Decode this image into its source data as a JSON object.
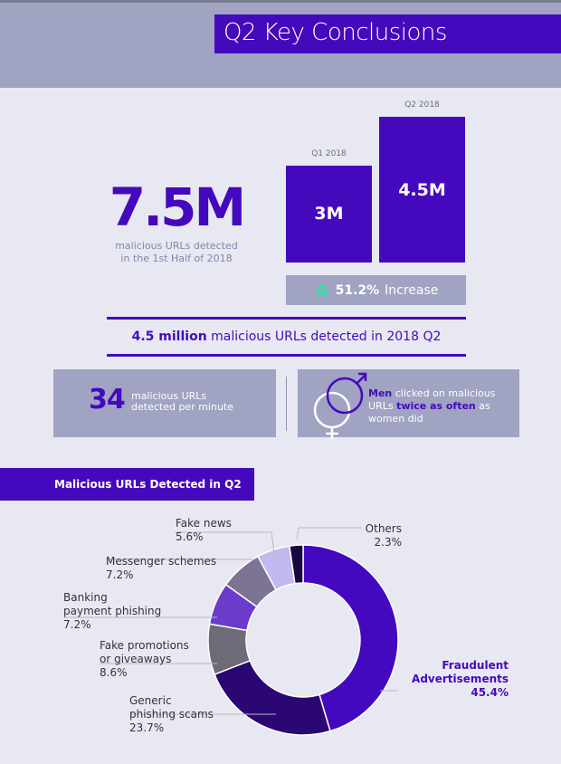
{
  "header": {
    "title": "Q2 Key Conclusions"
  },
  "summary": {
    "total": "7.5M",
    "total_caption_1": "malicious URLs detected",
    "total_caption_2": "in the 1st Half of 2018"
  },
  "chart_data": [
    {
      "type": "bar",
      "categories": [
        "Q1 2018",
        "Q2 2018"
      ],
      "values": [
        3,
        4.5
      ],
      "value_labels": [
        "3M",
        "4.5M"
      ],
      "unit": "M",
      "color": "#4509bd"
    },
    {
      "type": "pie",
      "title": "Malicious URLs Detected in Q2",
      "donut": true,
      "slices": [
        {
          "label": "Fraudulent Advertisements",
          "value": 45.4,
          "pct": "45.4%",
          "color": "#4209bf"
        },
        {
          "label": "Generic phishing scams",
          "value": 23.7,
          "pct": "23.7%",
          "color": "#2a0773"
        },
        {
          "label": "Fake promotions or giveaways",
          "value": 8.6,
          "pct": "8.6%",
          "color": "#6e6b79"
        },
        {
          "label": "Banking payment phishing",
          "value": 7.2,
          "pct": "7.2%",
          "color": "#6b3bcc"
        },
        {
          "label": "Messenger schemes",
          "value": 7.2,
          "pct": "7.2%",
          "color": "#7d7394"
        },
        {
          "label": "Fake news",
          "value": 5.6,
          "pct": "5.6%",
          "color": "#c2b9f0"
        },
        {
          "label": "Others",
          "value": 2.3,
          "pct": "2.3%",
          "color": "#1a0640"
        }
      ]
    }
  ],
  "increase": {
    "value": "51.2%",
    "label": "Increase",
    "icon": "double-chevron-up-icon",
    "icon_color": "#2ee6a8"
  },
  "q2": {
    "bold": "4.5 million",
    "rest": "malicious URLs detected in 2018 Q2"
  },
  "per_minute": {
    "number": "34",
    "line1": "malicious URLs",
    "line2": "detected per minute"
  },
  "gender": {
    "bold1": "Men",
    "t1": "clicked on malicious URLs",
    "bold2": "twice as often",
    "t2": "as women did",
    "icon": "gender-symbols-icon"
  },
  "labels": {
    "fraud1": "Fraudulent",
    "fraud2": "Advertisements",
    "generic1": "Generic",
    "generic2": "phishing scams",
    "promo1": "Fake promotions",
    "promo2": "or giveaways",
    "bank1": "Banking",
    "bank2": "payment phishing",
    "messenger": "Messenger schemes",
    "fakenews": "Fake news",
    "others": "Others"
  },
  "colors": {
    "accent": "#4509bd",
    "band": "#a0a3c1",
    "background": "#e8e8f2"
  }
}
